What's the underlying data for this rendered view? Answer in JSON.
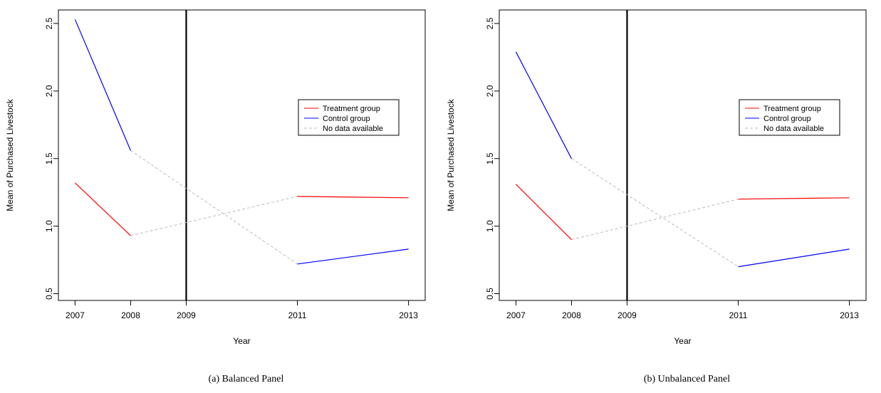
{
  "chart_data": [
    {
      "type": "line",
      "caption": "(a) Balanced Panel",
      "xlabel": "Year",
      "ylabel": "Mean of Purchased Livestock",
      "x": [
        2007,
        2008,
        2009,
        2011,
        2013
      ],
      "xtick_labels": [
        "2007",
        "2008",
        "2009",
        "2011",
        "2013"
      ],
      "yticks": [
        0.5,
        1.0,
        1.5,
        2.0,
        2.5
      ],
      "ytick_labels": [
        "0.5",
        "1.0",
        "1.5",
        "2.0",
        "2.5"
      ],
      "ylim": [
        0.45,
        2.6
      ],
      "vline_x": 2009,
      "grid": false,
      "legend_position": "right",
      "series": [
        {
          "name": "Treatment group",
          "color": "#ff0000",
          "style": "solid",
          "segments": [
            [
              [
                2007,
                1.32
              ],
              [
                2008,
                0.93
              ]
            ],
            [
              [
                2011,
                1.22
              ],
              [
                2013,
                1.21
              ]
            ]
          ]
        },
        {
          "name": "Control group",
          "color": "#0000ff",
          "style": "solid",
          "segments": [
            [
              [
                2007,
                2.53
              ],
              [
                2008,
                1.56
              ]
            ],
            [
              [
                2011,
                0.72
              ],
              [
                2013,
                0.83
              ]
            ]
          ]
        },
        {
          "name": "No data available",
          "color": "#bbbbbb",
          "style": "dashed",
          "segments": [
            [
              [
                2008,
                0.93
              ],
              [
                2011,
                1.22
              ]
            ],
            [
              [
                2008,
                1.56
              ],
              [
                2011,
                0.72
              ]
            ]
          ]
        }
      ]
    },
    {
      "type": "line",
      "caption": "(b) Unbalanced Panel",
      "xlabel": "Year",
      "ylabel": "Mean of Purchased Livestock",
      "x": [
        2007,
        2008,
        2009,
        2011,
        2013
      ],
      "xtick_labels": [
        "2007",
        "2008",
        "2009",
        "2011",
        "2013"
      ],
      "yticks": [
        0.5,
        1.0,
        1.5,
        2.0,
        2.5
      ],
      "ytick_labels": [
        "0.5",
        "1.0",
        "1.5",
        "2.0",
        "2.5"
      ],
      "ylim": [
        0.45,
        2.6
      ],
      "vline_x": 2009,
      "grid": false,
      "legend_position": "right",
      "series": [
        {
          "name": "Treatment group",
          "color": "#ff0000",
          "style": "solid",
          "segments": [
            [
              [
                2007,
                1.31
              ],
              [
                2008,
                0.9
              ]
            ],
            [
              [
                2011,
                1.2
              ],
              [
                2013,
                1.21
              ]
            ]
          ]
        },
        {
          "name": "Control group",
          "color": "#0000ff",
          "style": "solid",
          "segments": [
            [
              [
                2007,
                2.29
              ],
              [
                2008,
                1.5
              ]
            ],
            [
              [
                2011,
                0.7
              ],
              [
                2013,
                0.83
              ]
            ]
          ]
        },
        {
          "name": "No data available",
          "color": "#bbbbbb",
          "style": "dashed",
          "segments": [
            [
              [
                2008,
                0.9
              ],
              [
                2011,
                1.2
              ]
            ],
            [
              [
                2008,
                1.5
              ],
              [
                2011,
                0.7
              ]
            ]
          ]
        }
      ]
    }
  ]
}
